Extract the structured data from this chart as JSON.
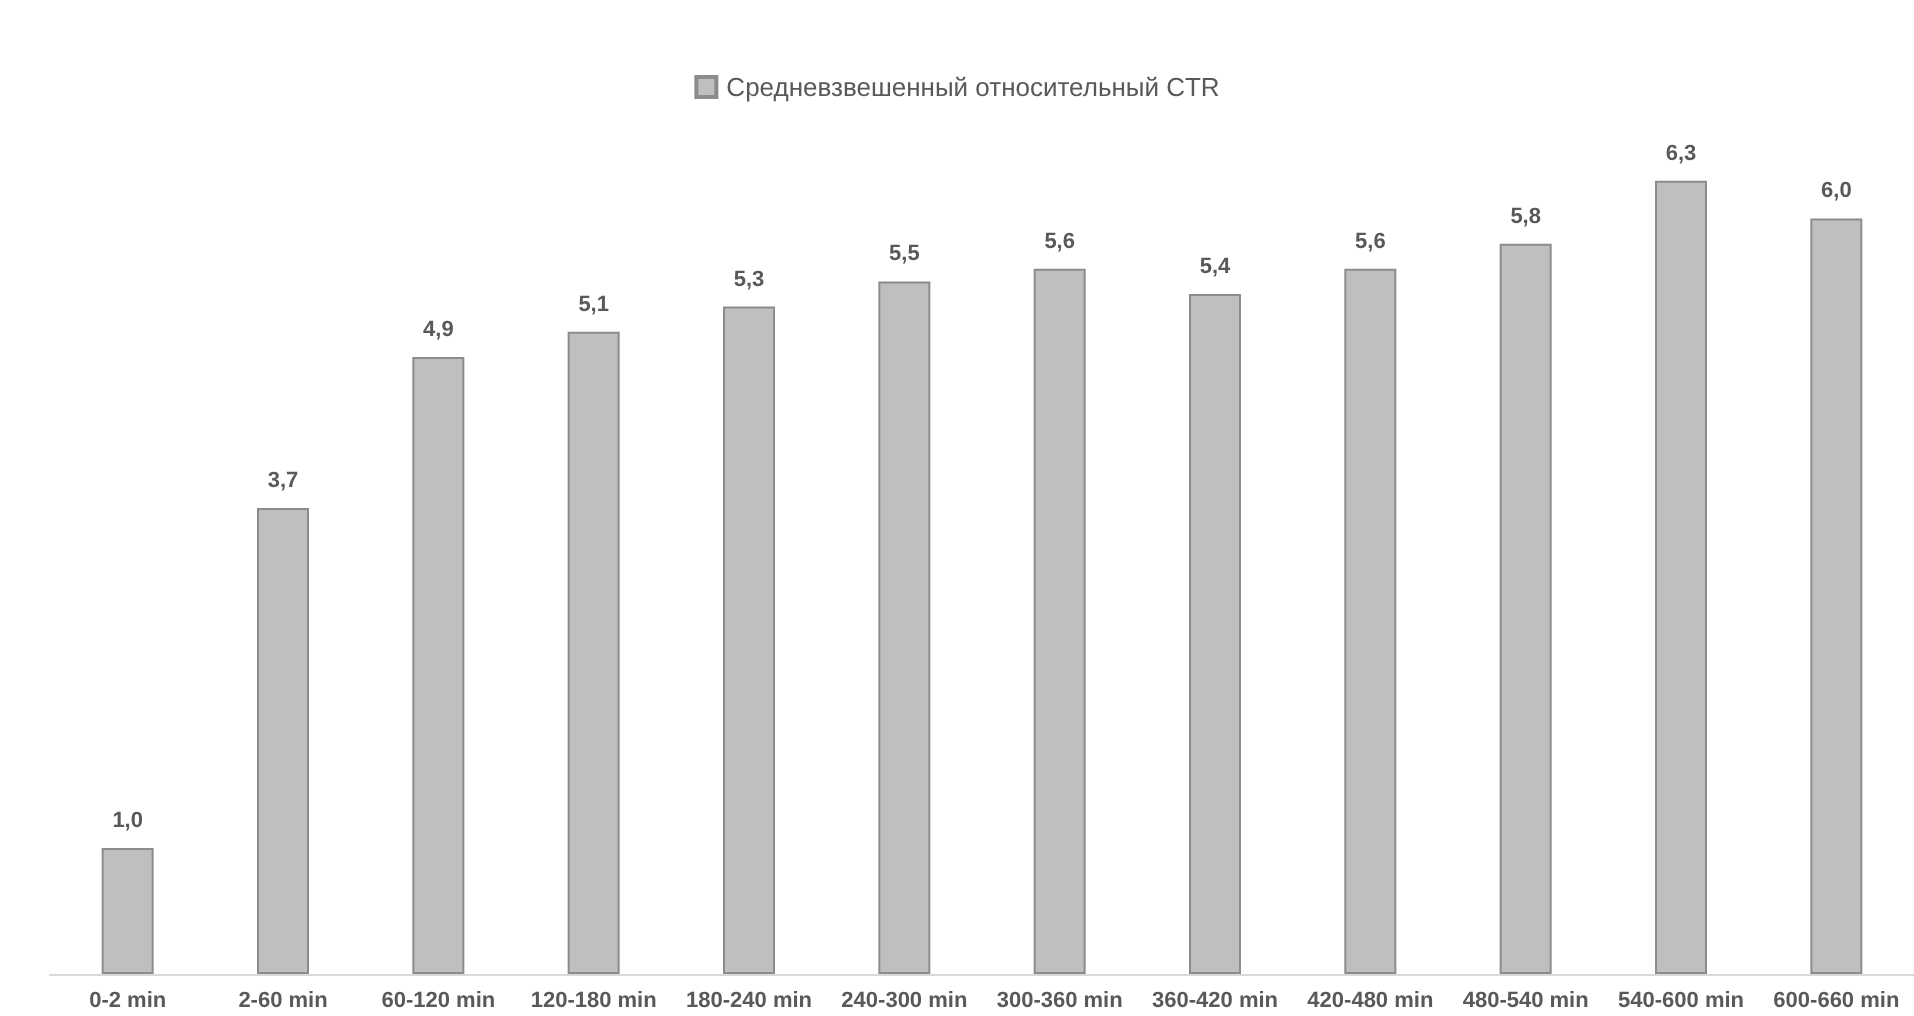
{
  "chart_data": {
    "type": "bar",
    "categories": [
      "0-2 min",
      "2-60 min",
      "60-120 min",
      "120-180 min",
      "180-240 min",
      "240-300 min",
      "300-360 min",
      "360-420 min",
      "420-480 min",
      "480-540 min",
      "540-600 min",
      "600-660 min"
    ],
    "series": [
      {
        "name": "Средневзвешенный относительный CTR",
        "color": "#bfbfbf",
        "values": [
          1.0,
          3.7,
          4.9,
          5.1,
          5.3,
          5.5,
          5.6,
          5.4,
          5.6,
          5.8,
          6.3,
          6.0
        ],
        "value_labels": [
          "1,0",
          "3,7",
          "4,9",
          "5,1",
          "5,3",
          "5,5",
          "5,6",
          "5,4",
          "5,6",
          "5,8",
          "6,3",
          "6,0"
        ]
      }
    ],
    "legend": "top",
    "grid": false
  }
}
